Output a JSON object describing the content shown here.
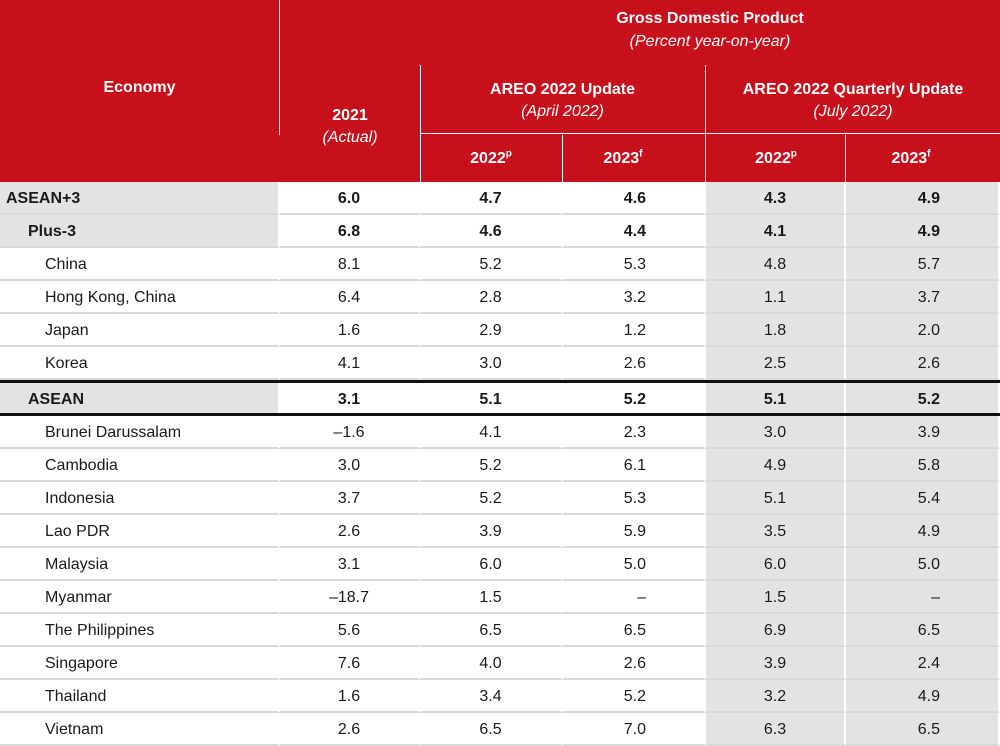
{
  "header": {
    "economy": "Economy",
    "gdp_title": "Gross Domestic Product",
    "gdp_subtitle": "(Percent year-on-year)",
    "col_2021": "2021",
    "col_2021_sub": "(Actual)",
    "april_title": "AREO 2022 Update",
    "april_sub": "(April 2022)",
    "july_title": "AREO 2022 Quarterly Update",
    "july_sub": "(July 2022)",
    "y2022": "2022",
    "y2022_sup": "p",
    "y2023": "2023",
    "y2023_sup": "f"
  },
  "rows": [
    {
      "name": "ASEAN+3",
      "v2021": "6.0",
      "apr2022": "4.7",
      "apr2023": "4.6",
      "jul2022": "4.3",
      "jul2023": "4.9"
    },
    {
      "name": "Plus-3",
      "v2021": "6.8",
      "apr2022": "4.6",
      "apr2023": "4.4",
      "jul2022": "4.1",
      "jul2023": "4.9"
    },
    {
      "name": "China",
      "v2021": "8.1",
      "apr2022": "5.2",
      "apr2023": "5.3",
      "jul2022": "4.8",
      "jul2023": "5.7"
    },
    {
      "name": "Hong Kong, China",
      "v2021": "6.4",
      "apr2022": "2.8",
      "apr2023": "3.2",
      "jul2022": "1.1",
      "jul2023": "3.7"
    },
    {
      "name": "Japan",
      "v2021": "1.6",
      "apr2022": "2.9",
      "apr2023": "1.2",
      "jul2022": "1.8",
      "jul2023": "2.0"
    },
    {
      "name": "Korea",
      "v2021": "4.1",
      "apr2022": "3.0",
      "apr2023": "2.6",
      "jul2022": "2.5",
      "jul2023": "2.6"
    },
    {
      "name": "ASEAN",
      "v2021": "3.1",
      "apr2022": "5.1",
      "apr2023": "5.2",
      "jul2022": "5.1",
      "jul2023": "5.2"
    },
    {
      "name": "Brunei Darussalam",
      "v2021": "–1.6",
      "apr2022": "4.1",
      "apr2023": "2.3",
      "jul2022": "3.0",
      "jul2023": "3.9"
    },
    {
      "name": "Cambodia",
      "v2021": "3.0",
      "apr2022": "5.2",
      "apr2023": "6.1",
      "jul2022": "4.9",
      "jul2023": "5.8"
    },
    {
      "name": "Indonesia",
      "v2021": "3.7",
      "apr2022": "5.2",
      "apr2023": "5.3",
      "jul2022": "5.1",
      "jul2023": "5.4"
    },
    {
      "name": "Lao PDR",
      "v2021": "2.6",
      "apr2022": "3.9",
      "apr2023": "5.9",
      "jul2022": "3.5",
      "jul2023": "4.9"
    },
    {
      "name": "Malaysia",
      "v2021": "3.1",
      "apr2022": "6.0",
      "apr2023": "5.0",
      "jul2022": "6.0",
      "jul2023": "5.0"
    },
    {
      "name": "Myanmar",
      "v2021": "–18.7",
      "apr2022": "1.5",
      "apr2023": "–",
      "jul2022": "1.5",
      "jul2023": "–"
    },
    {
      "name": "The Philippines",
      "v2021": "5.6",
      "apr2022": "6.5",
      "apr2023": "6.5",
      "jul2022": "6.9",
      "jul2023": "6.5"
    },
    {
      "name": "Singapore",
      "v2021": "7.6",
      "apr2022": "4.0",
      "apr2023": "2.6",
      "jul2022": "3.9",
      "jul2023": "2.4"
    },
    {
      "name": "Thailand",
      "v2021": "1.6",
      "apr2022": "3.4",
      "apr2023": "5.2",
      "jul2022": "3.2",
      "jul2023": "4.9"
    },
    {
      "name": "Vietnam",
      "v2021": "2.6",
      "apr2022": "6.5",
      "apr2023": "7.0",
      "jul2022": "6.3",
      "jul2023": "6.5"
    }
  ]
}
